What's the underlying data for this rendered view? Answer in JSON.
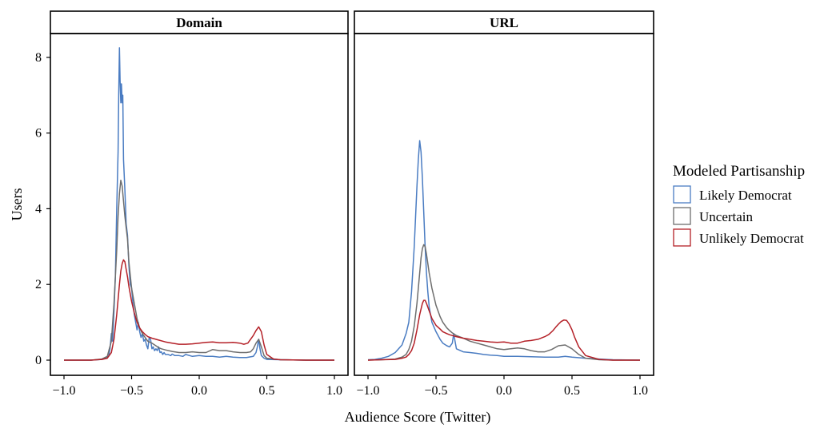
{
  "chart_data": {
    "type": "line",
    "xlabel": "Audience Score (Twitter)",
    "ylabel": "Users",
    "xlim": [
      -1.0,
      1.0
    ],
    "ylim": [
      0,
      8.7
    ],
    "x_ticks": [
      "−1.0",
      "−0.5",
      "0.0",
      "0.5",
      "1.0"
    ],
    "y_ticks": [
      "0",
      "2",
      "4",
      "6",
      "8"
    ],
    "legend": {
      "title": "Modeled Partisanship",
      "placement": "right",
      "entries": [
        "Likely Democrat",
        "Uncertain",
        "Unlikely Democrat"
      ]
    },
    "colors": {
      "Likely Democrat": "#4a7cc2",
      "Uncertain": "#6e6e6e",
      "Unlikely Democrat": "#b42027"
    },
    "panels": [
      {
        "strip": "Domain",
        "series": [
          {
            "name": "Likely Democrat",
            "x": [
              -1.0,
              -0.8,
              -0.72,
              -0.69,
              -0.67,
              -0.66,
              -0.65,
              -0.64,
              -0.63,
              -0.62,
              -0.61,
              -0.6,
              -0.595,
              -0.59,
              -0.585,
              -0.58,
              -0.575,
              -0.57,
              -0.565,
              -0.56,
              -0.55,
              -0.54,
              -0.53,
              -0.52,
              -0.51,
              -0.5,
              -0.49,
              -0.48,
              -0.47,
              -0.46,
              -0.45,
              -0.44,
              -0.43,
              -0.42,
              -0.41,
              -0.4,
              -0.39,
              -0.38,
              -0.37,
              -0.36,
              -0.35,
              -0.34,
              -0.33,
              -0.32,
              -0.31,
              -0.3,
              -0.29,
              -0.28,
              -0.27,
              -0.26,
              -0.25,
              -0.23,
              -0.21,
              -0.2,
              -0.18,
              -0.15,
              -0.12,
              -0.1,
              -0.05,
              0.0,
              0.05,
              0.1,
              0.15,
              0.2,
              0.25,
              0.3,
              0.35,
              0.4,
              0.42,
              0.43,
              0.44,
              0.45,
              0.46,
              0.48,
              0.5,
              0.6,
              0.8,
              1.0
            ],
            "y": [
              0.0,
              0.0,
              0.02,
              0.05,
              0.1,
              0.3,
              0.7,
              0.5,
              1.3,
              2.2,
              4.0,
              5.5,
              7.0,
              8.25,
              7.4,
              6.8,
              7.3,
              6.8,
              7.0,
              5.3,
              4.5,
              3.6,
              3.3,
              2.5,
              2.0,
              1.9,
              1.5,
              1.2,
              1.0,
              0.8,
              1.0,
              0.75,
              0.6,
              0.7,
              0.5,
              0.55,
              0.4,
              0.3,
              0.6,
              0.55,
              0.3,
              0.35,
              0.25,
              0.3,
              0.25,
              0.35,
              0.2,
              0.22,
              0.15,
              0.2,
              0.15,
              0.15,
              0.12,
              0.16,
              0.12,
              0.12,
              0.1,
              0.15,
              0.1,
              0.12,
              0.1,
              0.1,
              0.08,
              0.1,
              0.08,
              0.07,
              0.07,
              0.1,
              0.2,
              0.35,
              0.55,
              0.3,
              0.12,
              0.05,
              0.02,
              0.01,
              0.0,
              0.0
            ]
          },
          {
            "name": "Uncertain",
            "x": [
              -1.0,
              -0.8,
              -0.72,
              -0.68,
              -0.65,
              -0.63,
              -0.61,
              -0.6,
              -0.59,
              -0.58,
              -0.57,
              -0.56,
              -0.55,
              -0.54,
              -0.53,
              -0.52,
              -0.5,
              -0.48,
              -0.46,
              -0.44,
              -0.42,
              -0.4,
              -0.38,
              -0.35,
              -0.32,
              -0.3,
              -0.28,
              -0.25,
              -0.2,
              -0.15,
              -0.1,
              -0.05,
              0.0,
              0.05,
              0.1,
              0.15,
              0.2,
              0.25,
              0.3,
              0.35,
              0.38,
              0.4,
              0.42,
              0.44,
              0.46,
              0.48,
              0.5,
              0.6,
              0.8,
              1.0
            ],
            "y": [
              0.0,
              0.0,
              0.03,
              0.1,
              0.5,
              1.5,
              2.9,
              3.8,
              4.4,
              4.75,
              4.6,
              4.2,
              3.8,
              3.5,
              3.2,
              2.6,
              1.9,
              1.5,
              1.1,
              0.85,
              0.7,
              0.6,
              0.5,
              0.45,
              0.38,
              0.33,
              0.3,
              0.27,
              0.23,
              0.2,
              0.2,
              0.22,
              0.2,
              0.2,
              0.28,
              0.25,
              0.25,
              0.22,
              0.2,
              0.2,
              0.22,
              0.3,
              0.45,
              0.55,
              0.35,
              0.12,
              0.05,
              0.01,
              0.0,
              0.0
            ]
          },
          {
            "name": "Unlikely Democrat",
            "x": [
              -1.0,
              -0.8,
              -0.72,
              -0.68,
              -0.65,
              -0.63,
              -0.61,
              -0.6,
              -0.59,
              -0.58,
              -0.57,
              -0.56,
              -0.55,
              -0.54,
              -0.53,
              -0.52,
              -0.5,
              -0.48,
              -0.46,
              -0.44,
              -0.42,
              -0.4,
              -0.38,
              -0.35,
              -0.32,
              -0.3,
              -0.25,
              -0.2,
              -0.15,
              -0.1,
              -0.05,
              0.0,
              0.05,
              0.1,
              0.15,
              0.2,
              0.25,
              0.3,
              0.33,
              0.36,
              0.38,
              0.4,
              0.42,
              0.44,
              0.46,
              0.48,
              0.5,
              0.55,
              0.6,
              0.8,
              1.0
            ],
            "y": [
              0.0,
              0.0,
              0.02,
              0.05,
              0.2,
              0.55,
              1.2,
              1.6,
              2.0,
              2.35,
              2.55,
              2.65,
              2.6,
              2.4,
              2.2,
              1.95,
              1.55,
              1.25,
              1.0,
              0.85,
              0.75,
              0.68,
              0.62,
              0.58,
              0.55,
              0.53,
              0.48,
              0.45,
              0.42,
              0.42,
              0.43,
              0.45,
              0.47,
              0.48,
              0.46,
              0.46,
              0.47,
              0.45,
              0.42,
              0.45,
              0.55,
              0.65,
              0.78,
              0.88,
              0.75,
              0.4,
              0.15,
              0.03,
              0.01,
              0.0,
              0.0
            ]
          }
        ]
      },
      {
        "strip": "URL",
        "series": [
          {
            "name": "Likely Democrat",
            "x": [
              -1.0,
              -0.95,
              -0.9,
              -0.85,
              -0.8,
              -0.75,
              -0.72,
              -0.7,
              -0.68,
              -0.66,
              -0.65,
              -0.64,
              -0.63,
              -0.62,
              -0.61,
              -0.6,
              -0.59,
              -0.58,
              -0.57,
              -0.56,
              -0.55,
              -0.53,
              -0.5,
              -0.47,
              -0.45,
              -0.42,
              -0.4,
              -0.38,
              -0.37,
              -0.36,
              -0.35,
              -0.32,
              -0.3,
              -0.25,
              -0.2,
              -0.15,
              -0.1,
              -0.05,
              0.0,
              0.1,
              0.2,
              0.3,
              0.4,
              0.45,
              0.5,
              0.6,
              0.7,
              0.8,
              1.0
            ],
            "y": [
              0.01,
              0.02,
              0.05,
              0.1,
              0.2,
              0.4,
              0.7,
              1.0,
              1.8,
              3.0,
              3.8,
              4.6,
              5.3,
              5.8,
              5.5,
              4.8,
              3.9,
              3.0,
              2.3,
              1.8,
              1.4,
              1.0,
              0.75,
              0.55,
              0.45,
              0.38,
              0.35,
              0.45,
              0.7,
              0.5,
              0.3,
              0.25,
              0.22,
              0.2,
              0.18,
              0.15,
              0.13,
              0.12,
              0.1,
              0.1,
              0.09,
              0.08,
              0.08,
              0.1,
              0.08,
              0.05,
              0.03,
              0.01,
              0.0
            ]
          },
          {
            "name": "Uncertain",
            "x": [
              -1.0,
              -0.9,
              -0.8,
              -0.75,
              -0.72,
              -0.7,
              -0.68,
              -0.66,
              -0.64,
              -0.62,
              -0.61,
              -0.6,
              -0.59,
              -0.58,
              -0.57,
              -0.56,
              -0.55,
              -0.53,
              -0.5,
              -0.47,
              -0.45,
              -0.42,
              -0.4,
              -0.38,
              -0.35,
              -0.3,
              -0.25,
              -0.2,
              -0.15,
              -0.1,
              -0.05,
              0.0,
              0.05,
              0.1,
              0.15,
              0.2,
              0.25,
              0.3,
              0.35,
              0.4,
              0.45,
              0.5,
              0.55,
              0.6,
              0.7,
              0.8,
              1.0
            ],
            "y": [
              0.0,
              0.01,
              0.03,
              0.08,
              0.15,
              0.28,
              0.5,
              0.9,
              1.5,
              2.3,
              2.7,
              2.95,
              3.05,
              3.0,
              2.8,
              2.55,
              2.3,
              1.9,
              1.45,
              1.15,
              1.0,
              0.85,
              0.78,
              0.72,
              0.65,
              0.58,
              0.5,
              0.45,
              0.4,
              0.35,
              0.3,
              0.28,
              0.3,
              0.32,
              0.3,
              0.25,
              0.22,
              0.22,
              0.28,
              0.38,
              0.4,
              0.3,
              0.15,
              0.05,
              0.01,
              0.0,
              0.0
            ]
          },
          {
            "name": "Unlikely Democrat",
            "x": [
              -1.0,
              -0.9,
              -0.8,
              -0.75,
              -0.72,
              -0.7,
              -0.68,
              -0.66,
              -0.64,
              -0.62,
              -0.6,
              -0.59,
              -0.58,
              -0.57,
              -0.56,
              -0.55,
              -0.53,
              -0.5,
              -0.47,
              -0.45,
              -0.42,
              -0.4,
              -0.38,
              -0.35,
              -0.3,
              -0.25,
              -0.2,
              -0.15,
              -0.1,
              -0.05,
              0.0,
              0.05,
              0.1,
              0.15,
              0.2,
              0.25,
              0.3,
              0.33,
              0.36,
              0.38,
              0.4,
              0.42,
              0.44,
              0.46,
              0.48,
              0.5,
              0.52,
              0.55,
              0.6,
              0.7,
              0.8,
              1.0
            ],
            "y": [
              0.0,
              0.01,
              0.02,
              0.05,
              0.08,
              0.15,
              0.25,
              0.45,
              0.8,
              1.2,
              1.5,
              1.58,
              1.58,
              1.5,
              1.4,
              1.3,
              1.1,
              0.92,
              0.82,
              0.75,
              0.7,
              0.67,
              0.65,
              0.62,
              0.58,
              0.55,
              0.52,
              0.5,
              0.48,
              0.47,
              0.48,
              0.45,
              0.45,
              0.5,
              0.52,
              0.55,
              0.62,
              0.68,
              0.78,
              0.87,
              0.95,
              1.02,
              1.06,
              1.05,
              0.95,
              0.8,
              0.6,
              0.35,
              0.12,
              0.02,
              0.0,
              0.0
            ]
          }
        ]
      }
    ]
  }
}
